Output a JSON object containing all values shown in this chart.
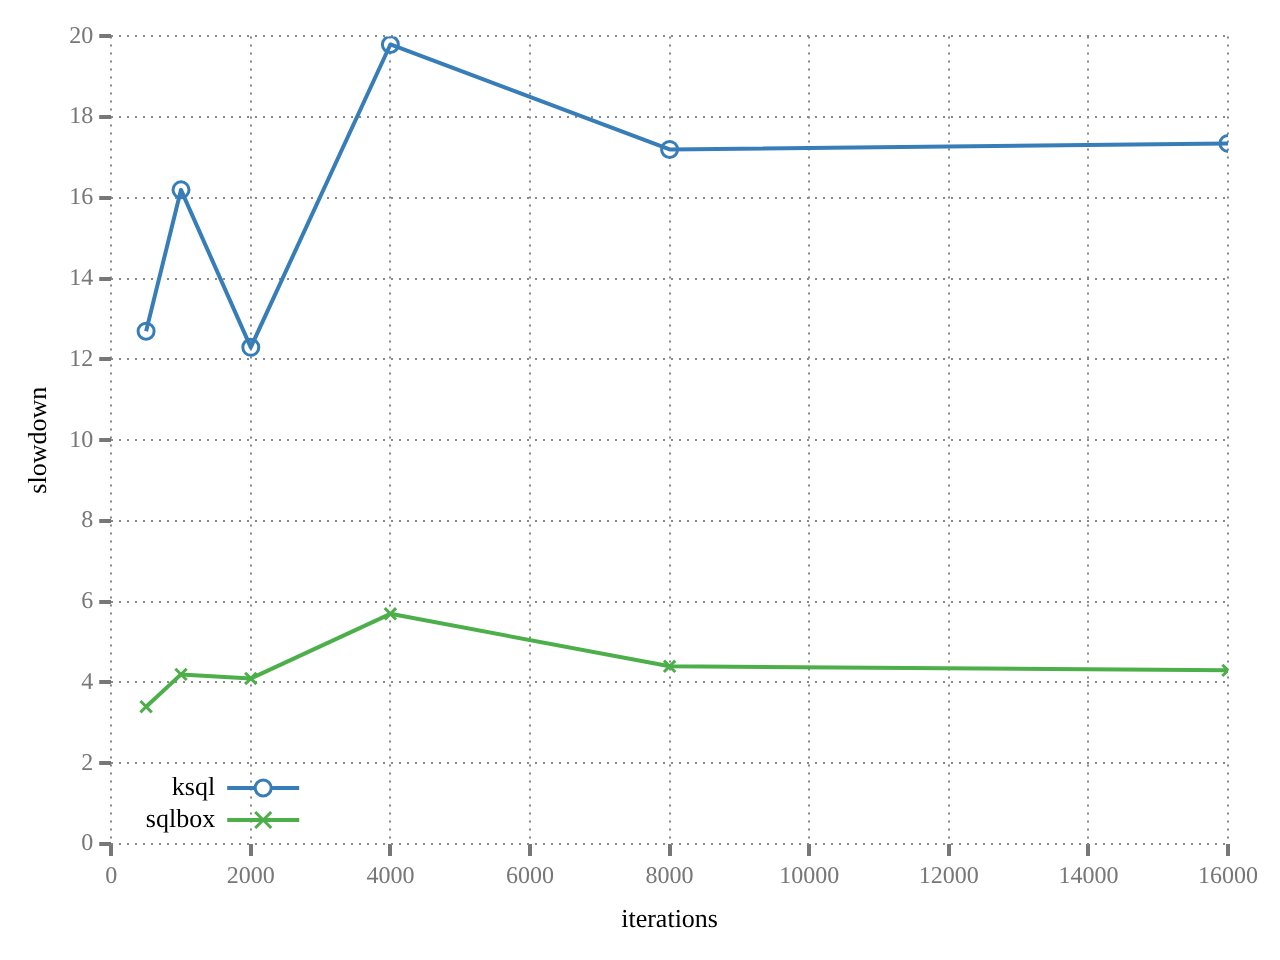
{
  "chart_data": {
    "type": "line",
    "xlabel": "iterations",
    "ylabel": "slowdown",
    "x": [
      500,
      1000,
      2000,
      4000,
      8000,
      16000
    ],
    "series": [
      {
        "name": "ksql",
        "color": "#377eb8",
        "marker": "circle",
        "values": [
          12.7,
          16.2,
          12.3,
          19.8,
          17.2,
          17.35
        ]
      },
      {
        "name": "sqlbox",
        "color": "#4daf4a",
        "marker": "cross",
        "values": [
          3.4,
          4.2,
          4.1,
          5.7,
          4.4,
          4.3
        ]
      }
    ],
    "xlim": [
      0,
      16000
    ],
    "xticks": [
      0,
      2000,
      4000,
      6000,
      8000,
      10000,
      12000,
      14000,
      16000
    ],
    "ylim": [
      0,
      20
    ],
    "yticks": [
      0,
      2,
      4,
      6,
      8,
      10,
      12,
      14,
      16,
      18,
      20
    ],
    "grid": true,
    "legend": "bottom left"
  }
}
